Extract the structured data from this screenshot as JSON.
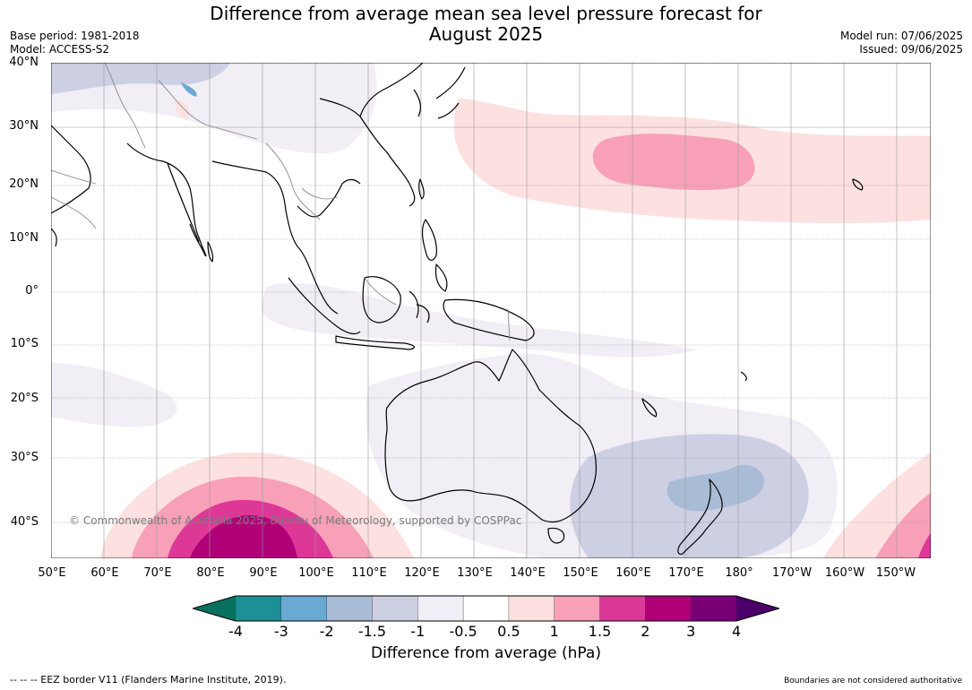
{
  "title_line1": "Difference from average mean sea level pressure forecast for",
  "title_line2": "August 2025",
  "base_period": "Base period: 1981-2018",
  "model": "Model: ACCESS-S2",
  "model_run": "Model run: 07/06/2025",
  "issued": "Issued: 09/06/2025",
  "copyright": "© Commonwealth of Australia 2025, Bureau of Meteorology, supported by COSPPac",
  "lat_labels": [
    "40°N",
    "30°N",
    "20°N",
    "10°N",
    "0°",
    "10°S",
    "20°S",
    "30°S",
    "40°S"
  ],
  "lon_labels": [
    "50°E",
    "60°E",
    "70°E",
    "80°E",
    "90°E",
    "100°E",
    "110°E",
    "120°E",
    "130°E",
    "140°E",
    "150°E",
    "160°E",
    "170°E",
    "180°",
    "170°W",
    "160°W",
    "150°W"
  ],
  "colorbar": {
    "ticks": [
      "-4",
      "-3",
      "-2",
      "-1.5",
      "-1",
      "-0.5",
      "0.5",
      "1",
      "1.5",
      "2",
      "3",
      "4"
    ],
    "colors": [
      "#1b9096",
      "#6aa9d2",
      "#a8bcd6",
      "#cdcfe3",
      "#f1eef5",
      "#ffffff",
      "#fde0e0",
      "#f8a0b8",
      "#dd3898",
      "#b00078",
      "#7a0076"
    ],
    "under_color": "#08705e",
    "over_color": "#4a0068",
    "label": "Difference from average (hPa)"
  },
  "footer_left": "--  --  -- EEZ border V11 (Flanders Marine Institute, 2019).",
  "footer_right": "Boundaries are not considered authoritative"
}
